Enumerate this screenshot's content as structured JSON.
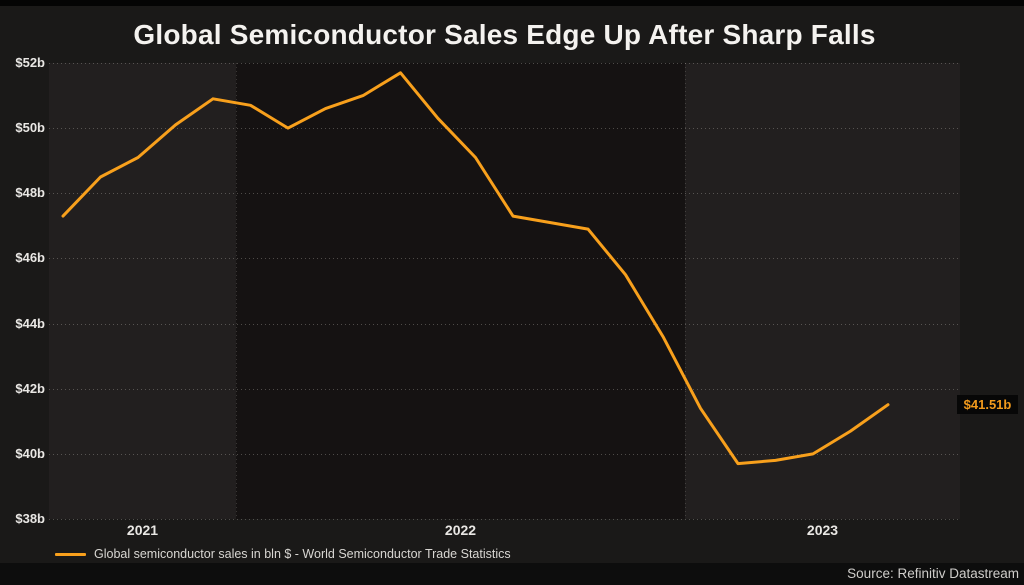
{
  "title": "Global Semiconductor Sales Edge Up After Sharp Falls",
  "colors": {
    "background": "#1a1918",
    "top_border": "#040404",
    "band_light": "#221f1f",
    "band_dark": "#151212",
    "line": "#f8a01c",
    "badge_bg": "#070707",
    "badge_text": "#f29a1c",
    "axis_text": "#e9e7e4",
    "title_text": "#f4f2ef",
    "legend_text": "#d8d6d2",
    "source_bar_bg": "#0d0d0d",
    "source_text": "#cfcdca"
  },
  "chart_data": {
    "type": "line",
    "title": "Global Semiconductor Sales Edge Up After Sharp Falls",
    "xlabel": "",
    "ylabel": "",
    "ylim": [
      38,
      52
    ],
    "grid": {
      "horizontal": "dotted",
      "vertical": "dotted-at-year-boundaries"
    },
    "legend_position": "bottom-left",
    "y_ticks": [
      {
        "value": 52,
        "label": "$52b"
      },
      {
        "value": 50,
        "label": "$50b"
      },
      {
        "value": 48,
        "label": "$48b"
      },
      {
        "value": 46,
        "label": "$46b"
      },
      {
        "value": 44,
        "label": "$44b"
      },
      {
        "value": 42,
        "label": "$42b"
      },
      {
        "value": 40,
        "label": "$40b"
      },
      {
        "value": 38,
        "label": "$38b"
      }
    ],
    "x_year_labels": [
      "2021",
      "2022",
      "2023"
    ],
    "series": [
      {
        "name": "Global semiconductor sales in bln $ - World Semiconductor Trade Statistics",
        "color": "#f8a01c",
        "x": [
          "2021-08",
          "2021-09",
          "2021-10",
          "2021-11",
          "2021-12",
          "2022-01",
          "2022-02",
          "2022-03",
          "2022-04",
          "2022-05",
          "2022-06",
          "2022-07",
          "2022-08",
          "2022-09",
          "2022-10",
          "2022-11",
          "2022-12",
          "2023-01",
          "2023-02",
          "2023-03",
          "2023-04",
          "2023-05",
          "2023-06"
        ],
        "values": [
          47.3,
          48.5,
          49.1,
          50.1,
          50.9,
          50.7,
          50.0,
          50.6,
          51.0,
          51.7,
          50.3,
          49.1,
          47.3,
          47.1,
          46.9,
          45.5,
          43.6,
          41.4,
          39.7,
          39.8,
          40.0,
          40.7,
          41.51
        ]
      }
    ],
    "end_label": "$41.51b",
    "source": "Source: Refinitiv Datastream"
  },
  "legend": {
    "label": "Global semiconductor sales in bln $ - World Semiconductor Trade Statistics"
  },
  "end_label": {
    "text": "$41.51b"
  },
  "footer": {
    "source": "Source: Refinitiv Datastream"
  }
}
